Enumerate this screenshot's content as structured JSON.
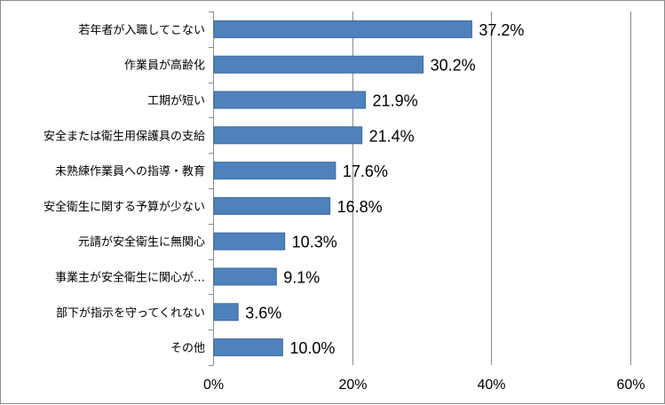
{
  "chart_data": {
    "type": "bar",
    "orientation": "horizontal",
    "title": "",
    "xlabel": "",
    "ylabel": "",
    "categories": [
      "若年者が入職してこない",
      "作業員が高齢化",
      "工期が短い",
      "安全または衛生用保護具の支給",
      "未熟練作業員への指導・教育",
      "安全衛生に関する予算が少ない",
      "元請が安全衛生に無関心",
      "事業主が安全衛生に関心が…",
      "部下が指示を守ってくれない",
      "その他"
    ],
    "values": [
      37.2,
      30.2,
      21.9,
      21.4,
      17.6,
      16.8,
      10.3,
      9.1,
      3.6,
      10.0
    ],
    "value_labels": [
      "37.2%",
      "30.2%",
      "21.9%",
      "21.4%",
      "17.6%",
      "16.8%",
      "10.3%",
      "9.1%",
      "3.6%",
      "10.0%"
    ],
    "xlim": [
      0,
      60
    ],
    "x_ticks": [
      0,
      20,
      40,
      60
    ],
    "x_tick_labels": [
      "0%",
      "20%",
      "40%",
      "60%"
    ],
    "grid": true,
    "legend": "none",
    "bar_color": "#4f81bd",
    "bar_border_color": "#3c6aa0",
    "grid_color": "#8c8c8c"
  }
}
